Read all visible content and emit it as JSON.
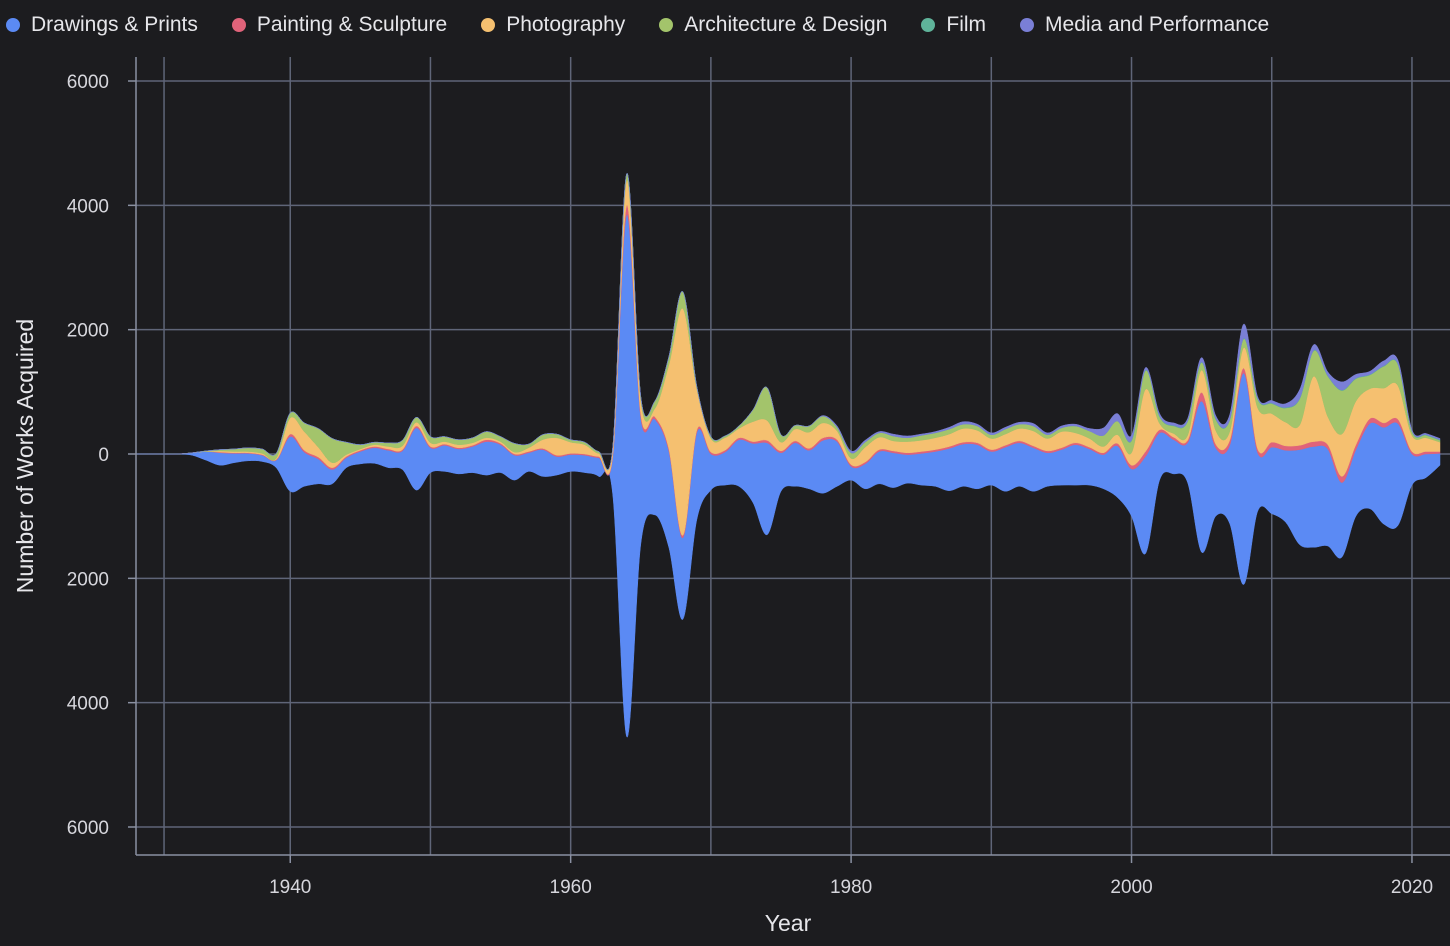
{
  "chart_data": {
    "type": "area",
    "layout": "streamgraph-wiggle",
    "xlabel": "Year",
    "ylabel": "Number of Works Acquired",
    "xlim": [
      1929,
      2022
    ],
    "ylim": [
      -6400,
      6000
    ],
    "x_ticks": [
      1940,
      1960,
      1980,
      2000,
      2020
    ],
    "y_ticks": [
      6000,
      4000,
      2000,
      0,
      -2000,
      -4000,
      -6000
    ],
    "y_tick_labels": [
      "6000",
      "4000",
      "2000",
      "0",
      "2000",
      "4000",
      "6000"
    ],
    "grid": true,
    "legend_position": "top",
    "x": [
      1929,
      1930,
      1931,
      1932,
      1933,
      1934,
      1935,
      1936,
      1937,
      1938,
      1939,
      1940,
      1941,
      1942,
      1943,
      1944,
      1945,
      1946,
      1947,
      1948,
      1949,
      1950,
      1951,
      1952,
      1953,
      1954,
      1955,
      1956,
      1957,
      1958,
      1959,
      1960,
      1961,
      1962,
      1963,
      1964,
      1965,
      1966,
      1967,
      1968,
      1969,
      1970,
      1971,
      1972,
      1973,
      1974,
      1975,
      1976,
      1977,
      1978,
      1979,
      1980,
      1981,
      1982,
      1983,
      1984,
      1985,
      1986,
      1987,
      1988,
      1989,
      1990,
      1991,
      1992,
      1993,
      1994,
      1995,
      1996,
      1997,
      1998,
      1999,
      2000,
      2001,
      2002,
      2003,
      2004,
      2005,
      2006,
      2007,
      2008,
      2009,
      2010,
      2011,
      2012,
      2013,
      2014,
      2015,
      2016,
      2017,
      2018,
      2019,
      2020,
      2021,
      2022
    ],
    "baseline": [
      0,
      0,
      0,
      0,
      -20,
      -100,
      -180,
      -140,
      -110,
      -120,
      -220,
      -600,
      -520,
      -480,
      -480,
      -220,
      -160,
      -150,
      -220,
      -250,
      -580,
      -300,
      -280,
      -320,
      -300,
      -340,
      -300,
      -420,
      -280,
      -360,
      -340,
      -280,
      -300,
      -360,
      -650,
      -4550,
      -1450,
      -980,
      -1500,
      -2660,
      -1050,
      -580,
      -500,
      -520,
      -780,
      -1300,
      -600,
      -520,
      -560,
      -630,
      -520,
      -420,
      -560,
      -480,
      -540,
      -470,
      -500,
      -520,
      -590,
      -520,
      -560,
      -500,
      -600,
      -520,
      -600,
      -520,
      -500,
      -500,
      -500,
      -560,
      -700,
      -1000,
      -1600,
      -420,
      -320,
      -460,
      -1580,
      -1000,
      -1120,
      -2100,
      -920,
      -960,
      -1100,
      -1460,
      -1500,
      -1480,
      -1660,
      -1000,
      -880,
      -1130,
      -1150,
      -500,
      -380,
      -180
    ],
    "series": [
      {
        "name": "Drawings & Prints",
        "color": "#5b8af4",
        "values": [
          0,
          0,
          0,
          0,
          40,
          140,
          200,
          150,
          120,
          100,
          120,
          880,
          550,
          400,
          230,
          160,
          200,
          250,
          280,
          300,
          1000,
          400,
          420,
          400,
          420,
          540,
          450,
          400,
          300,
          430,
          300,
          270,
          280,
          300,
          600,
          8400,
          2030,
          1540,
          1550,
          1310,
          1400,
          580,
          530,
          750,
          950,
          1480,
          620,
          700,
          620,
          850,
          720,
          220,
          400,
          520,
          560,
          460,
          510,
          560,
          680,
          680,
          710,
          540,
          710,
          700,
          700,
          540,
          570,
          650,
          580,
          550,
          830,
          760,
          1560,
          760,
          550,
          640,
          2430,
          1100,
          1260,
          3400,
          940,
          1070,
          1160,
          1530,
          1620,
          1560,
          1200,
          1070,
          1370,
          1560,
          1640,
          500,
          380,
          190
        ]
      },
      {
        "name": "Painting & Sculpture",
        "color": "#e0637a",
        "values": [
          0,
          0,
          0,
          0,
          0,
          0,
          10,
          10,
          10,
          10,
          10,
          40,
          30,
          30,
          30,
          20,
          20,
          20,
          20,
          20,
          30,
          20,
          20,
          20,
          20,
          30,
          20,
          20,
          20,
          20,
          20,
          20,
          20,
          20,
          30,
          150,
          60,
          40,
          40,
          40,
          40,
          30,
          30,
          30,
          30,
          40,
          30,
          30,
          30,
          40,
          30,
          30,
          30,
          30,
          30,
          30,
          30,
          30,
          30,
          30,
          30,
          30,
          30,
          30,
          30,
          30,
          30,
          30,
          30,
          30,
          40,
          60,
          80,
          50,
          40,
          40,
          140,
          60,
          80,
          80,
          60,
          80,
          70,
          70,
          80,
          70,
          100,
          80,
          80,
          70,
          70,
          40,
          40,
          30
        ]
      },
      {
        "name": "Photography",
        "color": "#f5c070",
        "values": [
          0,
          0,
          0,
          0,
          0,
          0,
          20,
          20,
          20,
          20,
          20,
          260,
          300,
          160,
          80,
          30,
          20,
          30,
          40,
          60,
          60,
          60,
          40,
          50,
          40,
          30,
          30,
          30,
          60,
          140,
          280,
          180,
          150,
          50,
          110,
          400,
          220,
          130,
          1340,
          3650,
          650,
          220,
          200,
          150,
          320,
          320,
          140,
          190,
          260,
          240,
          140,
          100,
          240,
          200,
          160,
          180,
          180,
          190,
          200,
          220,
          200,
          180,
          180,
          200,
          240,
          200,
          260,
          160,
          140,
          100,
          140,
          200,
          1000,
          100,
          60,
          80,
          360,
          220,
          140,
          330,
          660,
          460,
          380,
          330,
          1050,
          450,
          680,
          700,
          480,
          560,
          540,
          260,
          220,
          150
        ]
      },
      {
        "name": "Architecture & Design",
        "color": "#a3c46b",
        "values": [
          0,
          0,
          0,
          0,
          0,
          10,
          20,
          40,
          60,
          70,
          80,
          80,
          140,
          300,
          390,
          200,
          70,
          40,
          60,
          90,
          80,
          100,
          80,
          80,
          80,
          100,
          80,
          140,
          60,
          80,
          60,
          40,
          40,
          30,
          10,
          110,
          60,
          120,
          130,
          270,
          40,
          30,
          30,
          40,
          190,
          530,
          120,
          60,
          100,
          110,
          60,
          90,
          80,
          70,
          80,
          60,
          80,
          80,
          80,
          70,
          70,
          60,
          80,
          70,
          80,
          60,
          60,
          110,
          120,
          180,
          220,
          190,
          300,
          110,
          120,
          220,
          120,
          180,
          180,
          140,
          140,
          160,
          230,
          420,
          410,
          650,
          700,
          360,
          220,
          350,
          340,
          60,
          40,
          30
        ]
      },
      {
        "name": "Film",
        "color": "#5fb39a",
        "values": [
          0,
          0,
          0,
          0,
          0,
          0,
          0,
          0,
          0,
          0,
          0,
          0,
          0,
          0,
          0,
          0,
          0,
          0,
          0,
          0,
          0,
          0,
          0,
          0,
          0,
          0,
          0,
          0,
          0,
          0,
          0,
          0,
          0,
          0,
          0,
          0,
          0,
          0,
          0,
          0,
          0,
          0,
          0,
          0,
          0,
          0,
          0,
          0,
          0,
          0,
          0,
          0,
          0,
          0,
          0,
          0,
          0,
          0,
          0,
          0,
          0,
          0,
          0,
          0,
          0,
          0,
          0,
          0,
          0,
          0,
          0,
          10,
          10,
          10,
          10,
          10,
          10,
          10,
          10,
          10,
          10,
          10,
          10,
          10,
          10,
          10,
          10,
          10,
          10,
          10,
          10,
          10,
          10,
          10
        ]
      },
      {
        "name": "Media and Performance",
        "color": "#7a7fd6",
        "values": [
          0,
          0,
          0,
          0,
          0,
          0,
          0,
          0,
          0,
          0,
          0,
          0,
          0,
          0,
          0,
          0,
          0,
          0,
          0,
          0,
          0,
          0,
          0,
          0,
          0,
          0,
          0,
          0,
          0,
          0,
          0,
          0,
          0,
          0,
          0,
          0,
          0,
          0,
          0,
          0,
          0,
          0,
          0,
          0,
          0,
          0,
          0,
          0,
          0,
          10,
          20,
          30,
          30,
          20,
          30,
          30,
          20,
          20,
          30,
          40,
          30,
          30,
          30,
          30,
          40,
          30,
          30,
          30,
          40,
          120,
          120,
          80,
          40,
          40,
          40,
          40,
          70,
          50,
          80,
          230,
          30,
          40,
          60,
          140,
          90,
          60,
          130,
          60,
          50,
          80,
          60,
          20,
          20,
          20
        ]
      }
    ]
  }
}
